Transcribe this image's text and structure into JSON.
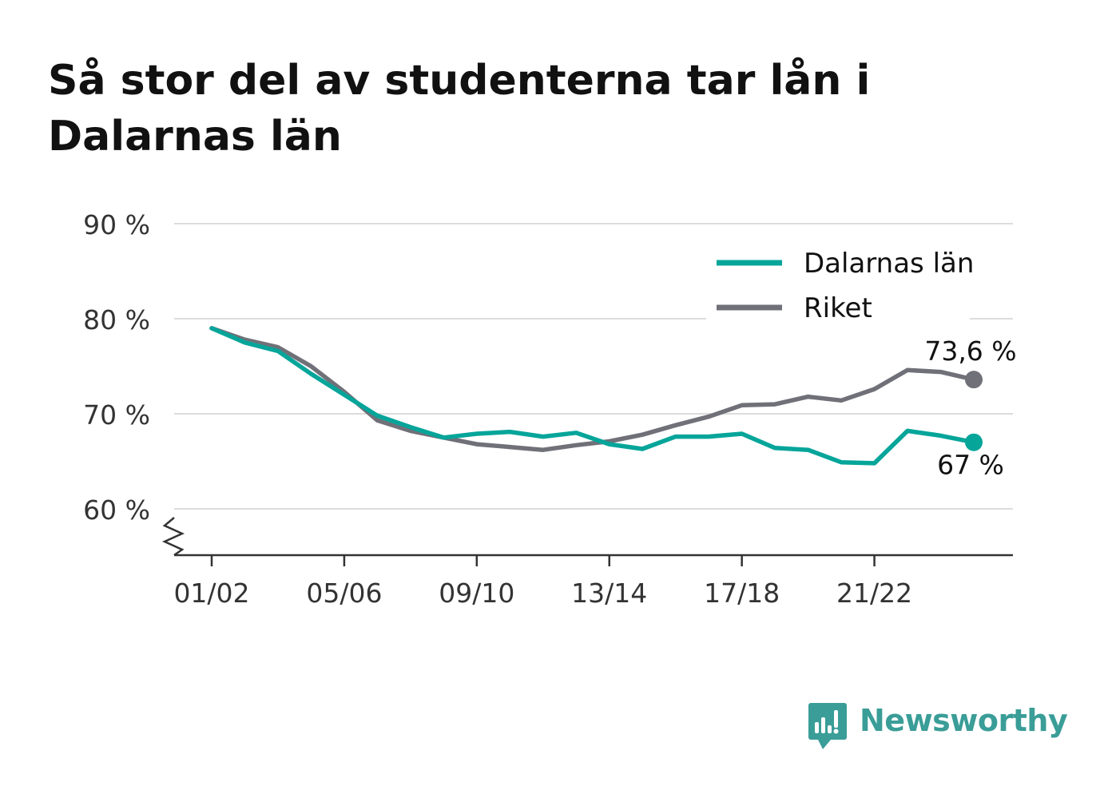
{
  "title": "Så stor del av studenterna tar lån i Dalarnas län",
  "brand": {
    "name": "Newsworthy",
    "icon": "newsworthy-logo-icon",
    "color": "#3a9d97"
  },
  "chart_data": {
    "type": "line",
    "title": "Så stor del av studenterna tar lån i Dalarnas län",
    "xlabel": "",
    "ylabel": "",
    "ylim": [
      55,
      90
    ],
    "yticks": [
      60,
      70,
      80,
      90
    ],
    "ytick_labels": [
      "60 %",
      "70 %",
      "80 %",
      "90 %"
    ],
    "y_axis_broken": true,
    "grid": true,
    "legend_position": "top-right",
    "x": [
      "01/02",
      "02/03",
      "03/04",
      "04/05",
      "05/06",
      "06/07",
      "07/08",
      "08/09",
      "09/10",
      "10/11",
      "11/12",
      "12/13",
      "13/14",
      "14/15",
      "15/16",
      "16/17",
      "17/18",
      "18/19",
      "19/20",
      "20/21",
      "21/22",
      "22/23",
      "23/24",
      "24/25"
    ],
    "xticks": [
      "01/02",
      "05/06",
      "09/10",
      "13/14",
      "17/18",
      "21/22"
    ],
    "series": [
      {
        "name": "Dalarnas län",
        "color": "#06a59a",
        "values": [
          79.0,
          77.5,
          76.6,
          74.2,
          72.0,
          69.8,
          68.6,
          67.5,
          67.9,
          68.1,
          67.6,
          68.0,
          66.8,
          66.3,
          67.6,
          67.6,
          67.9,
          66.4,
          66.2,
          64.9,
          64.8,
          68.2,
          67.7,
          67.0
        ],
        "end_label": "67 %"
      },
      {
        "name": "Riket",
        "color": "#707078",
        "values": [
          79.0,
          77.8,
          77.0,
          75.0,
          72.3,
          69.3,
          68.2,
          67.5,
          66.8,
          66.5,
          66.2,
          66.7,
          67.1,
          67.8,
          68.8,
          69.7,
          70.9,
          71.0,
          71.8,
          71.4,
          72.6,
          74.6,
          74.4,
          73.6
        ],
        "end_label": "73,6 %"
      }
    ]
  }
}
